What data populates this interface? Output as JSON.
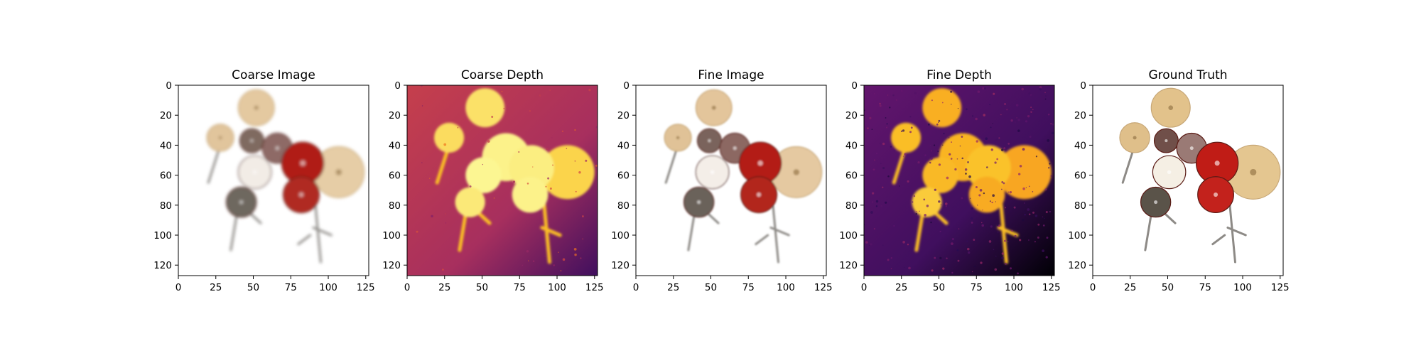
{
  "chart_data": [
    {
      "type": "image",
      "title": "Coarse Image",
      "xlim": [
        0,
        127
      ],
      "ylim": [
        127,
        0
      ],
      "xticks": [
        0,
        25,
        50,
        75,
        100,
        125
      ],
      "yticks": [
        0,
        20,
        40,
        60,
        80,
        100,
        120
      ],
      "content": "rgb",
      "sharpness": "blurry",
      "background": "#ffffff",
      "objects": [
        {
          "kind": "cymbal",
          "cx": 52,
          "cy": 15,
          "r": 12,
          "color": "#e4c9a0"
        },
        {
          "kind": "cymbal",
          "cx": 28,
          "cy": 35,
          "r": 9,
          "color": "#e1c59c"
        },
        {
          "kind": "cymbal",
          "cx": 107,
          "cy": 58,
          "r": 17,
          "color": "#e6cda6"
        },
        {
          "kind": "drum",
          "cx": 49,
          "cy": 37,
          "r": 8,
          "color": "#7f6a60"
        },
        {
          "kind": "drum",
          "cx": 66,
          "cy": 42,
          "r": 10,
          "color": "#8e6b66"
        },
        {
          "kind": "drum",
          "cx": 83,
          "cy": 52,
          "r": 14,
          "color": "#b01d18"
        },
        {
          "kind": "drum",
          "cx": 51,
          "cy": 58,
          "r": 11,
          "color": "#f2ece6"
        },
        {
          "kind": "drum",
          "cx": 82,
          "cy": 73,
          "r": 12,
          "color": "#b02a22"
        },
        {
          "kind": "drum",
          "cx": 42,
          "cy": 78,
          "r": 10,
          "color": "#6e675f"
        }
      ]
    },
    {
      "type": "heatmap",
      "title": "Coarse Depth",
      "colormap": "inferno",
      "xlim": [
        0,
        127
      ],
      "ylim": [
        127,
        0
      ],
      "xticks": [
        0,
        25,
        50,
        75,
        100,
        125
      ],
      "yticks": [
        0,
        20,
        40,
        60,
        80,
        100,
        120
      ],
      "background_level": 0.45,
      "noise": "low",
      "objects": [
        {
          "cx": 52,
          "cy": 15,
          "r": 13,
          "level": 0.93
        },
        {
          "cx": 28,
          "cy": 35,
          "r": 10,
          "level": 0.92
        },
        {
          "cx": 107,
          "cy": 58,
          "r": 18,
          "level": 0.9
        },
        {
          "cx": 66,
          "cy": 48,
          "r": 16,
          "level": 0.97
        },
        {
          "cx": 83,
          "cy": 55,
          "r": 15,
          "level": 0.96
        },
        {
          "cx": 51,
          "cy": 60,
          "r": 12,
          "level": 0.98
        },
        {
          "cx": 82,
          "cy": 73,
          "r": 12,
          "level": 0.97
        },
        {
          "cx": 42,
          "cy": 78,
          "r": 10,
          "level": 0.95
        }
      ]
    },
    {
      "type": "image",
      "title": "Fine Image",
      "xlim": [
        0,
        127
      ],
      "ylim": [
        127,
        0
      ],
      "xticks": [
        0,
        25,
        50,
        75,
        100,
        125
      ],
      "yticks": [
        0,
        20,
        40,
        60,
        80,
        100,
        120
      ],
      "content": "rgb",
      "sharpness": "medium",
      "background": "#ffffff",
      "objects": [
        {
          "kind": "cymbal",
          "cx": 52,
          "cy": 15,
          "r": 12,
          "color": "#e3c59b"
        },
        {
          "kind": "cymbal",
          "cx": 28,
          "cy": 35,
          "r": 9,
          "color": "#e0c297"
        },
        {
          "kind": "cymbal",
          "cx": 107,
          "cy": 58,
          "r": 17,
          "color": "#e5c9a1"
        },
        {
          "kind": "drum",
          "cx": 49,
          "cy": 37,
          "r": 8,
          "color": "#7a645c"
        },
        {
          "kind": "drum",
          "cx": 66,
          "cy": 42,
          "r": 10,
          "color": "#8c6862"
        },
        {
          "kind": "drum",
          "cx": 83,
          "cy": 52,
          "r": 14,
          "color": "#b31b15"
        },
        {
          "kind": "drum",
          "cx": 51,
          "cy": 58,
          "r": 11,
          "color": "#f4eee8"
        },
        {
          "kind": "drum",
          "cx": 82,
          "cy": 73,
          "r": 12,
          "color": "#b2261f"
        },
        {
          "kind": "drum",
          "cx": 42,
          "cy": 78,
          "r": 10,
          "color": "#6a625a"
        }
      ]
    },
    {
      "type": "heatmap",
      "title": "Fine Depth",
      "colormap": "inferno",
      "xlim": [
        0,
        127
      ],
      "ylim": [
        127,
        0
      ],
      "xticks": [
        0,
        25,
        50,
        75,
        100,
        125
      ],
      "yticks": [
        0,
        20,
        40,
        60,
        80,
        100,
        120
      ],
      "background_level": 0.2,
      "noise": "high",
      "objects": [
        {
          "cx": 52,
          "cy": 15,
          "r": 13,
          "level": 0.82
        },
        {
          "cx": 28,
          "cy": 35,
          "r": 10,
          "level": 0.85
        },
        {
          "cx": 107,
          "cy": 58,
          "r": 18,
          "level": 0.8
        },
        {
          "cx": 66,
          "cy": 48,
          "r": 16,
          "level": 0.83
        },
        {
          "cx": 83,
          "cy": 55,
          "r": 15,
          "level": 0.86
        },
        {
          "cx": 51,
          "cy": 60,
          "r": 12,
          "level": 0.84
        },
        {
          "cx": 82,
          "cy": 73,
          "r": 12,
          "level": 0.81
        },
        {
          "cx": 42,
          "cy": 78,
          "r": 10,
          "level": 0.88
        }
      ]
    },
    {
      "type": "image",
      "title": "Ground Truth",
      "xlim": [
        0,
        127
      ],
      "ylim": [
        127,
        0
      ],
      "xticks": [
        0,
        25,
        50,
        75,
        100,
        125
      ],
      "yticks": [
        0,
        20,
        40,
        60,
        80,
        100,
        120
      ],
      "content": "rgb",
      "sharpness": "sharp",
      "background": "#ffffff",
      "objects": [
        {
          "kind": "cymbal",
          "cx": 52,
          "cy": 15,
          "r": 13,
          "color": "#e2c28b"
        },
        {
          "kind": "cymbal",
          "cx": 28,
          "cy": 35,
          "r": 10,
          "color": "#dfbf8a"
        },
        {
          "kind": "cymbal",
          "cx": 107,
          "cy": 58,
          "r": 18,
          "color": "#e4c690"
        },
        {
          "kind": "drum",
          "cx": 49,
          "cy": 37,
          "r": 8,
          "color": "#6f5048"
        },
        {
          "kind": "drum",
          "cx": 66,
          "cy": 42,
          "r": 10,
          "color": "#9a7a74"
        },
        {
          "kind": "drum",
          "cx": 83,
          "cy": 52,
          "r": 14,
          "color": "#c01b14"
        },
        {
          "kind": "drum",
          "cx": 51,
          "cy": 58,
          "r": 11,
          "color": "#f5efe4"
        },
        {
          "kind": "drum",
          "cx": 82,
          "cy": 73,
          "r": 12,
          "color": "#c3241a"
        },
        {
          "kind": "drum",
          "cx": 42,
          "cy": 78,
          "r": 10,
          "color": "#5a524a"
        }
      ]
    }
  ]
}
